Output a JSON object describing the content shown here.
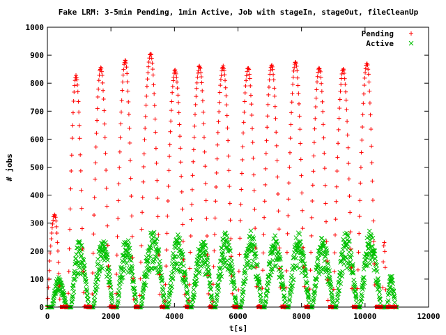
{
  "chart_data": {
    "type": "scatter",
    "title": "Fake LRM: 3-5min Pending, 1min Active, Job with stageIn, stageOut, fileCleanUp",
    "xlabel": "t[s]",
    "ylabel": "# jobs",
    "xlim": [
      0,
      12000
    ],
    "ylim": [
      0,
      1000
    ],
    "xticks": [
      "0",
      "2000",
      "4000",
      "6000",
      "8000",
      "10000",
      "12000"
    ],
    "yticks": [
      "0",
      "100",
      "200",
      "300",
      "400",
      "500",
      "600",
      "700",
      "800",
      "900",
      "1000"
    ],
    "legend_position": "top-right",
    "series": [
      {
        "name": "Pending",
        "marker": "+",
        "color": "#ff0000",
        "peaks": [
          {
            "t_start": 0,
            "t_peak": 230,
            "t_end": 400,
            "peak": 330
          },
          {
            "t_start": 650,
            "t_peak": 900,
            "t_end": 1150,
            "peak": 825
          },
          {
            "t_start": 1400,
            "t_peak": 1680,
            "t_end": 1950,
            "peak": 855
          },
          {
            "t_start": 2150,
            "t_peak": 2450,
            "t_end": 2720,
            "peak": 880
          },
          {
            "t_start": 2900,
            "t_peak": 3250,
            "t_end": 3550,
            "peak": 905
          },
          {
            "t_start": 3700,
            "t_peak": 4020,
            "t_end": 4330,
            "peak": 845
          },
          {
            "t_start": 4450,
            "t_peak": 4790,
            "t_end": 5080,
            "peak": 860
          },
          {
            "t_start": 5200,
            "t_peak": 5530,
            "t_end": 5830,
            "peak": 860
          },
          {
            "t_start": 6000,
            "t_peak": 6320,
            "t_end": 6600,
            "peak": 855
          },
          {
            "t_start": 6750,
            "t_peak": 7060,
            "t_end": 7350,
            "peak": 865
          },
          {
            "t_start": 7500,
            "t_peak": 7810,
            "t_end": 8100,
            "peak": 875
          },
          {
            "t_start": 8250,
            "t_peak": 8560,
            "t_end": 8840,
            "peak": 855
          },
          {
            "t_start": 9000,
            "t_peak": 9310,
            "t_end": 9600,
            "peak": 850
          },
          {
            "t_start": 9750,
            "t_peak": 10060,
            "t_end": 10320,
            "peak": 870
          },
          {
            "t_start": 10550,
            "t_peak": 10600,
            "t_end": 10660,
            "peak": 232
          }
        ]
      },
      {
        "name": "Active",
        "marker": "x",
        "color": "#00c000",
        "peaks": [
          {
            "t_start": 150,
            "t_peak": 350,
            "t_end": 600,
            "peak": 95
          },
          {
            "t_start": 750,
            "t_peak": 1000,
            "t_end": 1300,
            "peak": 215
          },
          {
            "t_start": 1450,
            "t_peak": 1750,
            "t_end": 2050,
            "peak": 228
          },
          {
            "t_start": 2200,
            "t_peak": 2480,
            "t_end": 2800,
            "peak": 225
          },
          {
            "t_start": 2950,
            "t_peak": 3330,
            "t_end": 3700,
            "peak": 252
          },
          {
            "t_start": 3800,
            "t_peak": 4100,
            "t_end": 4450,
            "peak": 232
          },
          {
            "t_start": 4550,
            "t_peak": 4880,
            "t_end": 5200,
            "peak": 222
          },
          {
            "t_start": 5300,
            "t_peak": 5600,
            "t_end": 5950,
            "peak": 240
          },
          {
            "t_start": 6100,
            "t_peak": 6400,
            "t_end": 6750,
            "peak": 248
          },
          {
            "t_start": 6850,
            "t_peak": 7150,
            "t_end": 7500,
            "peak": 230
          },
          {
            "t_start": 7600,
            "t_peak": 7900,
            "t_end": 8250,
            "peak": 238
          },
          {
            "t_start": 8350,
            "t_peak": 8650,
            "t_end": 9000,
            "peak": 228
          },
          {
            "t_start": 9100,
            "t_peak": 9400,
            "t_end": 9750,
            "peak": 240
          },
          {
            "t_start": 9850,
            "t_peak": 10150,
            "t_end": 10500,
            "peak": 245
          },
          {
            "t_start": 10700,
            "t_peak": 10800,
            "t_end": 10950,
            "peak": 110
          }
        ]
      }
    ]
  }
}
